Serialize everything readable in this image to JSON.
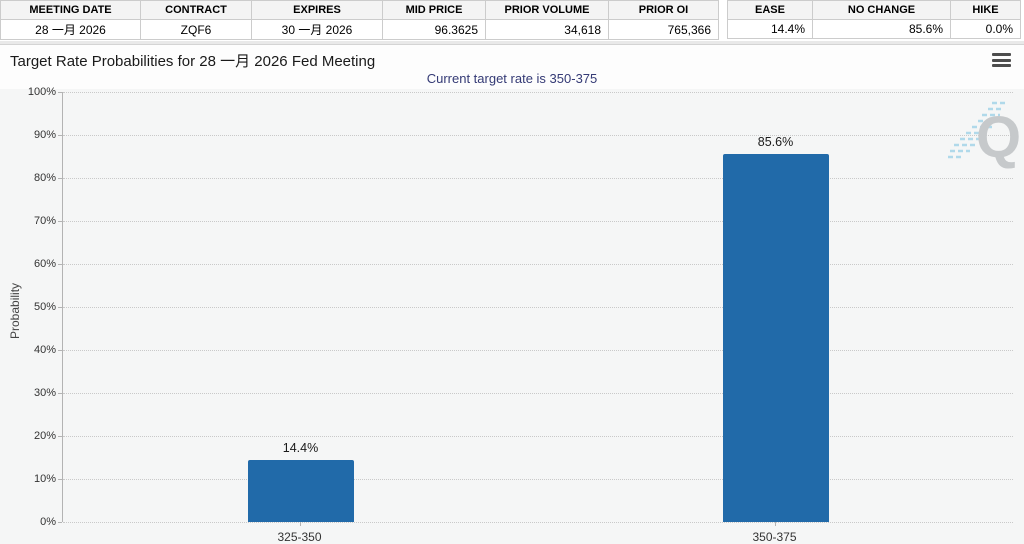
{
  "contract_table": {
    "headers": [
      "MEETING DATE",
      "CONTRACT",
      "EXPIRES",
      "MID PRICE",
      "PRIOR VOLUME",
      "PRIOR OI"
    ],
    "values": [
      "28 一月 2026",
      "ZQF6",
      "30 一月 2026",
      "96.3625",
      "34,618",
      "765,366"
    ]
  },
  "probability_table": {
    "headers": [
      "EASE",
      "NO CHANGE",
      "HIKE"
    ],
    "values": [
      "14.4%",
      "85.6%",
      "0.0%"
    ]
  },
  "panel": {
    "title": "Target Rate Probabilities for 28 一月 2026 Fed Meeting",
    "subtitle": "Current target rate is 350-375",
    "menu_icon": "hamburger-menu-icon",
    "watermark_letter": "Q"
  },
  "chart_data": {
    "type": "bar",
    "categories": [
      "325-350",
      "350-375"
    ],
    "values": [
      14.4,
      85.6
    ],
    "value_labels": [
      "14.4%",
      "85.6%"
    ],
    "title": "Target Rate Probabilities for 28 一月 2026 Fed Meeting",
    "subtitle": "Current target rate is 350-375",
    "xlabel": "",
    "ylabel": "Probability",
    "ylim": [
      0,
      100
    ],
    "ytick_step": 10,
    "ytick_labels": [
      "0%",
      "10%",
      "20%",
      "30%",
      "40%",
      "50%",
      "60%",
      "70%",
      "80%",
      "90%",
      "100%"
    ],
    "grid": "horizontal-dotted",
    "legend": "none",
    "bar_color": "#216aa9"
  },
  "colors": {
    "bar": "#216aa9",
    "subtitle": "#343a75",
    "chart_bg": "#f5f6f6",
    "header_bg": "#f4f4f4",
    "border": "#cccccc",
    "grid": "#c9c9c9",
    "axis": "#b3b3b3",
    "watermark_q": "#c6c9cb",
    "watermark_stripes": "#a5d5e8"
  }
}
